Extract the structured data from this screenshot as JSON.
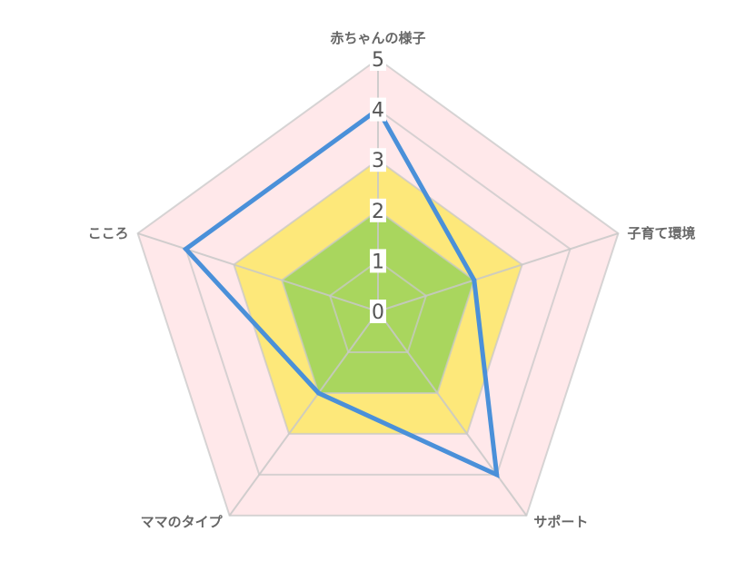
{
  "chart_data": {
    "type": "radar",
    "axes": [
      "赤ちゃんの様子",
      "子育て環境",
      "サポート",
      "ママのタイプ",
      "こころ"
    ],
    "r_range": [
      0,
      5
    ],
    "ticks": [
      "0",
      "1",
      "2",
      "3",
      "4",
      "5"
    ],
    "bands": [
      {
        "level": 5,
        "color": "#ffe8ea"
      },
      {
        "level": 3,
        "color": "#fde87a"
      },
      {
        "level": 2,
        "color": "#a9d65e"
      }
    ],
    "series": [
      {
        "values": [
          4,
          2,
          4,
          2,
          4
        ],
        "color": "#4a90d9"
      }
    ],
    "grid": true
  }
}
